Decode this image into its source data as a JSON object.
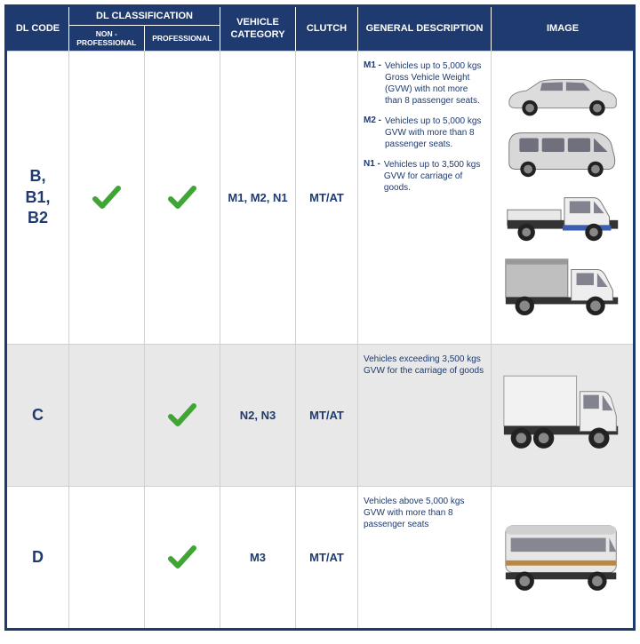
{
  "header": {
    "dl_code": "DL CODE",
    "classification": "DL CLASSIFICATION",
    "nonpro": "NON - PROFESSIONAL",
    "pro": "PROFESSIONAL",
    "vehicle_cat": "VEHICLE CATEGORY",
    "clutch": "CLUTCH",
    "desc": "GENERAL DESCRIPTION",
    "image": "IMAGE"
  },
  "colors": {
    "header_bg": "#1e3a6e",
    "text": "#1e3a6e",
    "check": "#3fa535",
    "alt_row": "#e8e8e8"
  },
  "rows": [
    {
      "code": "B,\nB1,\nB2",
      "nonpro": true,
      "pro": true,
      "category": "M1, M2, N1",
      "clutch": "MT/AT",
      "desc": [
        {
          "label": "M1 -",
          "text": "Vehicles up to 5,000 kgs Gross Vehicle Weight (GVW) with not more than 8 passenger seats."
        },
        {
          "label": "M2 -",
          "text": "Vehicles up to 5,000 kgs GVW with more than 8 passenger seats."
        },
        {
          "label": "N1 -",
          "text": "Vehicles up to 3,500 kgs GVW for carriage of goods."
        }
      ],
      "vehicles": [
        "sedan",
        "van",
        "light-truck",
        "box-truck-sm"
      ]
    },
    {
      "code": "C",
      "nonpro": false,
      "pro": true,
      "category": "N2, N3",
      "clutch": "MT/AT",
      "desc": [
        {
          "label": "",
          "text": "Vehicles exceeding 3,500 kgs GVW for the carriage of goods"
        }
      ],
      "vehicles": [
        "box-truck-lg"
      ]
    },
    {
      "code": "D",
      "nonpro": false,
      "pro": true,
      "category": "M3",
      "clutch": "MT/AT",
      "desc": [
        {
          "label": "",
          "text": "Vehicles above 5,000 kgs GVW with more than 8 passenger seats"
        }
      ],
      "vehicles": [
        "bus"
      ]
    }
  ]
}
